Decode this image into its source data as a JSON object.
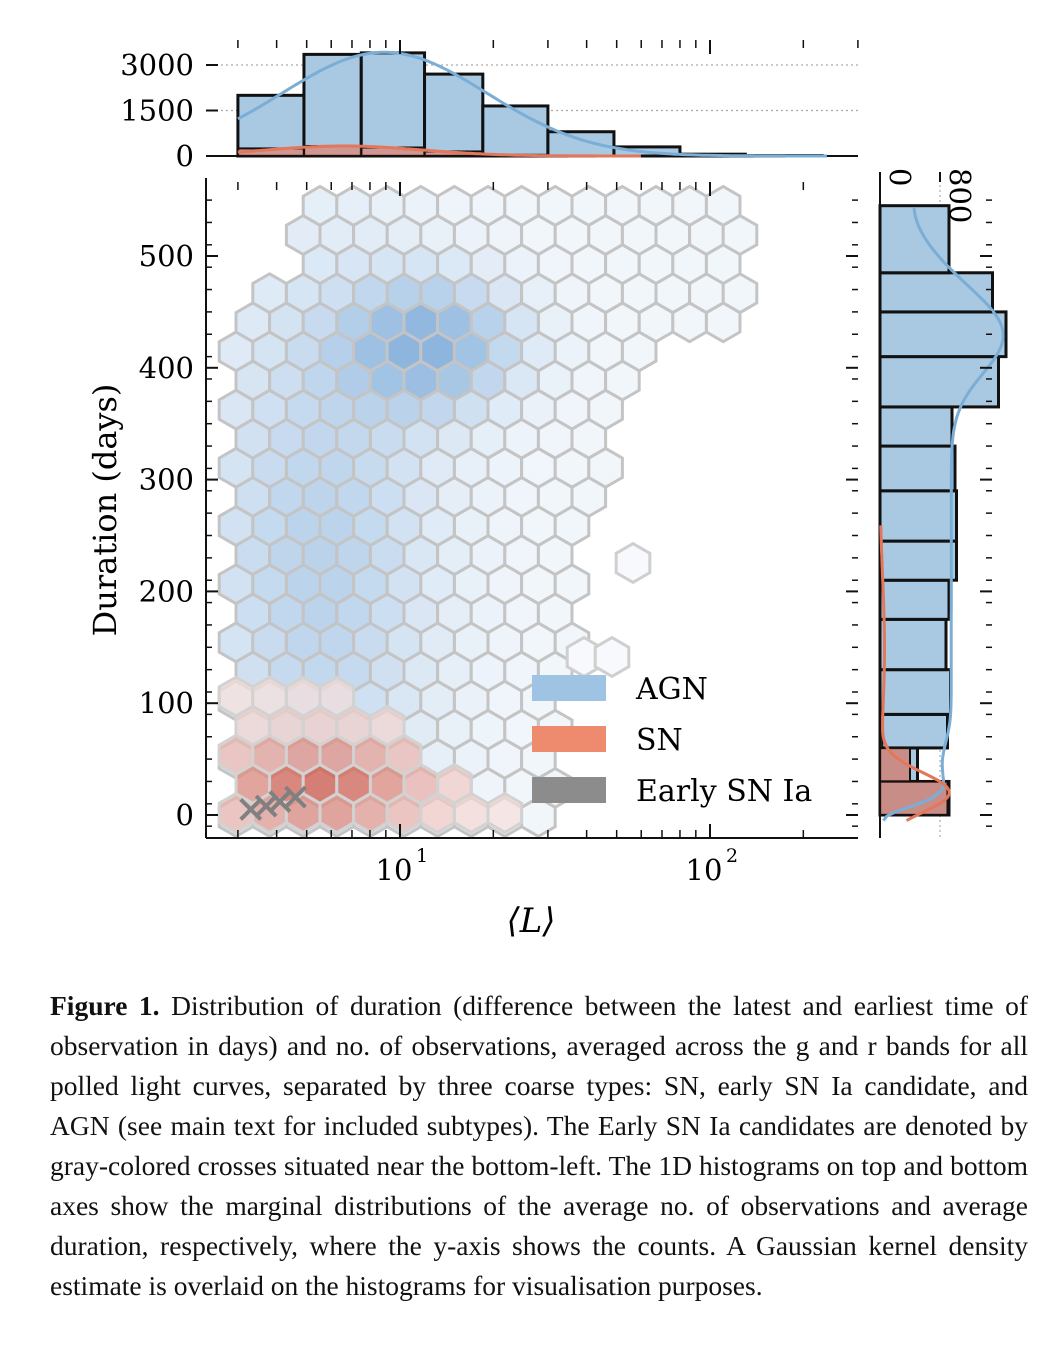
{
  "chart_data": {
    "type": "hexbin-joint",
    "main": {
      "xlabel": "⟨L⟩",
      "ylabel": "Duration (days)",
      "x_scale": "log",
      "xlim": [
        2.8,
        290
      ],
      "ylim": [
        -20,
        570
      ],
      "x_ticks": [
        {
          "v": 10,
          "base": "10",
          "exp": "1"
        },
        {
          "v": 100,
          "base": "10",
          "exp": "2"
        }
      ],
      "y_ticks": [
        0,
        100,
        200,
        300,
        400,
        500
      ],
      "legend": {
        "position": "lower-right",
        "entries": [
          {
            "label": "AGN",
            "color": "#9ec3e3"
          },
          {
            "label": "SN",
            "color": "#ee8a6d"
          },
          {
            "label": "Early SN Ia",
            "color": "#8c8c8c"
          }
        ]
      },
      "early_sn_ia_crosses": [
        [
          3.3,
          5
        ],
        [
          3.7,
          8
        ],
        [
          4.1,
          12
        ],
        [
          4.6,
          16
        ]
      ]
    },
    "top_hist": {
      "y_ticks": [
        0,
        1500,
        3000
      ],
      "bins": [
        [
          3.0,
          4.9,
          2000
        ],
        [
          4.9,
          7.5,
          3350
        ],
        [
          7.5,
          12.0,
          3400
        ],
        [
          12.0,
          18.5,
          2700
        ],
        [
          18.5,
          30,
          1650
        ],
        [
          30,
          49,
          800
        ],
        [
          49,
          80,
          300
        ],
        [
          80,
          130,
          60
        ],
        [
          130,
          230,
          15
        ]
      ],
      "sn_bins": [
        [
          3.0,
          4.9,
          250
        ],
        [
          4.9,
          7.5,
          330
        ],
        [
          7.5,
          12.0,
          280
        ],
        [
          12.0,
          18.5,
          150
        ],
        [
          18.5,
          30,
          40
        ]
      ]
    },
    "right_hist": {
      "x_ticks": [
        0,
        800
      ],
      "bins": [
        [
          0,
          30,
          920
        ],
        [
          30,
          60,
          500
        ],
        [
          60,
          90,
          900
        ],
        [
          90,
          130,
          940
        ],
        [
          130,
          175,
          880
        ],
        [
          175,
          210,
          920
        ],
        [
          210,
          245,
          1020
        ],
        [
          245,
          290,
          1020
        ],
        [
          290,
          330,
          1000
        ],
        [
          330,
          365,
          960
        ],
        [
          365,
          410,
          1580
        ],
        [
          410,
          450,
          1680
        ],
        [
          450,
          485,
          1500
        ],
        [
          485,
          545,
          920
        ]
      ],
      "sn_bins": [
        [
          0,
          30,
          900
        ],
        [
          30,
          60,
          400
        ],
        [
          60,
          90,
          30
        ]
      ]
    }
  },
  "caption": {
    "label": "Figure 1.",
    "text": "Distribution of duration (difference between the latest and earliest time of observation in days) and no. of observations, averaged across the g and r bands for all polled light curves, separated by three coarse types: SN, early SN Ia candidate, and AGN (see main text for included subtypes). The Early SN Ia candidates are denoted by gray-colored crosses situated near the bottom-left. The 1D histograms on top and bottom axes show the marginal distributions of the average no. of observations and average duration, respectively, where the y-axis shows the counts. A Gaussian kernel density estimate is overlaid on the histograms for visualisation purposes."
  }
}
